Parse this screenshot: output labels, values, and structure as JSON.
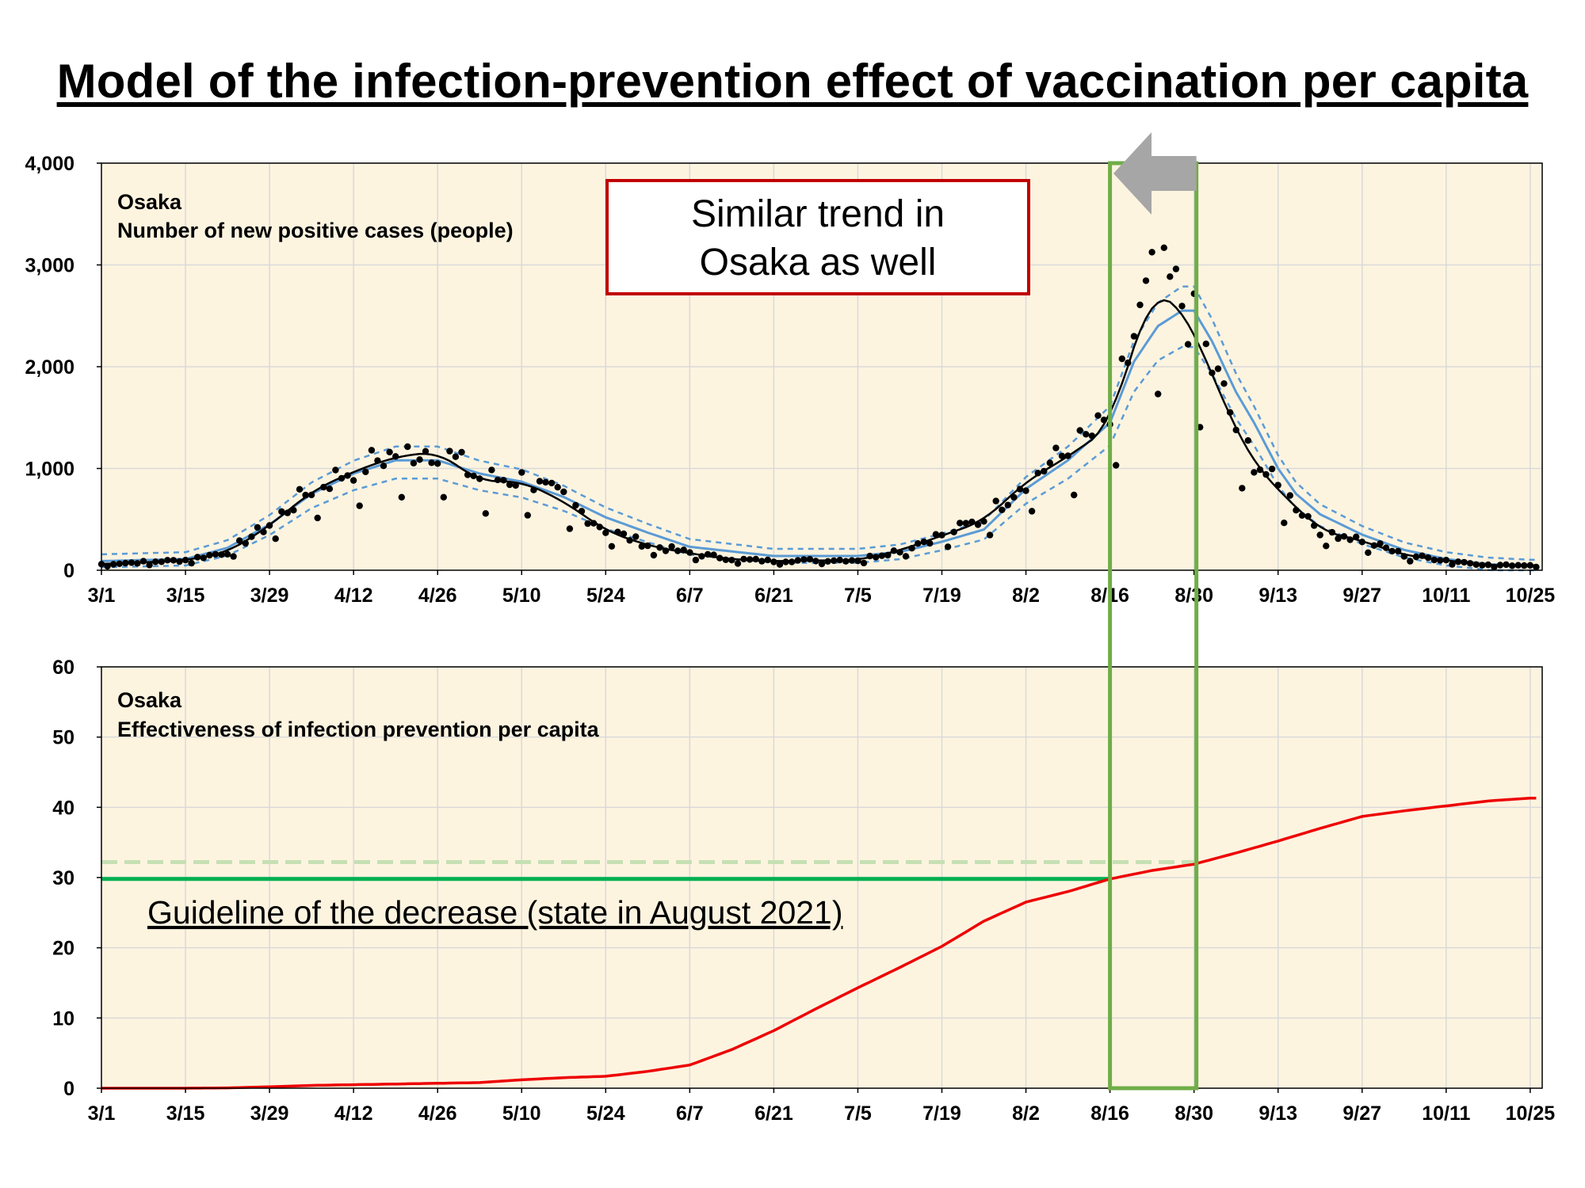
{
  "title": "Model of the infection-prevention effect of vaccination per capita",
  "colors": {
    "plot_background": "#fdf4e0",
    "dots": "#000000",
    "average_line": "#000000",
    "model_line": "#5b9bd5",
    "model_band": "#5b9bd5",
    "effect_line": "#ee0000",
    "guideline": "#00b050",
    "guideline_dashed": "#c6e0b4",
    "highlight_box": "#70ad47",
    "callout_border": "#c00000",
    "arrow": "#a6a6a6"
  },
  "x_ticks": [
    "3/1",
    "3/15",
    "3/29",
    "4/12",
    "4/26",
    "5/10",
    "5/24",
    "6/7",
    "6/21",
    "7/5",
    "7/19",
    "8/2",
    "8/16",
    "8/30",
    "9/13",
    "9/27",
    "10/11",
    "10/25"
  ],
  "top_panel": {
    "label_line1": "Osaka",
    "label_line2": "Number of new positive cases (people)",
    "y_ticks": [
      "4,000",
      "3,000",
      "2,000",
      "1,000",
      "0"
    ]
  },
  "bottom_panel": {
    "label_line1": "Osaka",
    "label_line2": "Effectiveness of infection prevention per capita",
    "y_ticks": [
      "60",
      "50",
      "40",
      "30",
      "20",
      "10",
      "0"
    ]
  },
  "callout": {
    "line1": "Similar trend in",
    "line2": "Osaka as well"
  },
  "guideline_text": "Guideline of the decrease (state in August 2021)",
  "highlight": {
    "start": "8/16",
    "end": "8/30",
    "arrow_direction": "left"
  },
  "chart_data": [
    {
      "type": "scatter",
      "title": "Osaka Number of new positive cases (people)",
      "x_unit": "date (2021)",
      "x_range": [
        "3/1",
        "10/27"
      ],
      "ylim": [
        0,
        4000
      ],
      "grid": true,
      "series": [
        {
          "kind": "daily_points",
          "x": [
            "3/1",
            "3/8",
            "3/15",
            "3/22",
            "3/29",
            "4/5",
            "4/12",
            "4/19",
            "4/26",
            "5/3",
            "5/10",
            "5/17",
            "5/24",
            "5/31",
            "6/7",
            "6/14",
            "6/21",
            "6/28",
            "7/5",
            "7/12",
            "7/19",
            "7/26",
            "8/2",
            "8/9",
            "8/16",
            "8/20",
            "8/23",
            "8/26",
            "8/28",
            "8/30",
            "9/2",
            "9/6",
            "9/9",
            "9/13",
            "9/16",
            "9/20",
            "9/27",
            "10/4",
            "10/11",
            "10/18",
            "10/25"
          ],
          "y": [
            60,
            80,
            100,
            180,
            450,
            800,
            1000,
            1150,
            1200,
            900,
            900,
            700,
            400,
            250,
            170,
            110,
            90,
            100,
            100,
            200,
            350,
            500,
            900,
            1150,
            1450,
            2300,
            2800,
            2780,
            2640,
            2400,
            2000,
            1400,
            1100,
            800,
            650,
            400,
            300,
            150,
            100,
            50,
            50
          ]
        },
        {
          "name": "",
          "kind": "model_line",
          "x": [
            "3/1",
            "3/15",
            "3/22",
            "3/29",
            "4/5",
            "4/12",
            "4/19",
            "4/26",
            "5/3",
            "5/10",
            "5/17",
            "5/24",
            "5/31",
            "6/7",
            "6/21",
            "7/5",
            "7/12",
            "7/19",
            "7/26",
            "8/2",
            "8/9",
            "8/16",
            "8/20",
            "8/24",
            "8/28",
            "8/30",
            "9/2",
            "9/6",
            "9/9",
            "9/13",
            "9/16",
            "9/20",
            "9/27",
            "10/4",
            "10/11",
            "10/18",
            "10/25",
            "10/27"
          ],
          "y": [
            90,
            110,
            220,
            450,
            750,
            950,
            1080,
            1080,
            950,
            870,
            720,
            520,
            370,
            230,
            140,
            140,
            180,
            280,
            400,
            800,
            1080,
            1450,
            2050,
            2400,
            2550,
            2550,
            2250,
            1750,
            1450,
            1000,
            750,
            550,
            350,
            200,
            110,
            60,
            40,
            40
          ]
        }
      ]
    },
    {
      "type": "line",
      "title": "Osaka Effectiveness of infection prevention per capita",
      "x_unit": "date (2021)",
      "x_range": [
        "3/1",
        "10/27"
      ],
      "ylim": [
        0,
        60
      ],
      "grid": true,
      "series": [
        {
          "kind": "effect_line",
          "x": [
            "3/1",
            "3/15",
            "3/22",
            "3/29",
            "4/5",
            "4/12",
            "4/19",
            "4/26",
            "5/3",
            "5/10",
            "5/17",
            "5/24",
            "5/31",
            "6/7",
            "6/14",
            "6/21",
            "6/28",
            "7/5",
            "7/12",
            "7/19",
            "7/26",
            "8/2",
            "8/9",
            "8/16",
            "8/23",
            "8/30",
            "9/6",
            "9/13",
            "9/20",
            "9/27",
            "10/4",
            "10/11",
            "10/18",
            "10/25",
            "10/27"
          ],
          "y": [
            0,
            0,
            0.05,
            0.2,
            0.4,
            0.5,
            0.6,
            0.7,
            0.8,
            1.2,
            1.5,
            1.7,
            2.4,
            3.3,
            5.5,
            8.2,
            11.3,
            14.3,
            17.2,
            20.2,
            23.8,
            26.5,
            28.0,
            29.8,
            31.0,
            31.9,
            33.5,
            35.2,
            37.0,
            38.7,
            39.5,
            40.2,
            40.9,
            41.3,
            41.3
          ]
        },
        {
          "kind": "guideline",
          "x": [
            "3/1",
            "8/16"
          ],
          "y": [
            29.8,
            29.8
          ]
        },
        {
          "kind": "guideline_dashed",
          "x": [
            "3/1",
            "8/30"
          ],
          "y": [
            32.2,
            32.2
          ]
        }
      ]
    }
  ]
}
